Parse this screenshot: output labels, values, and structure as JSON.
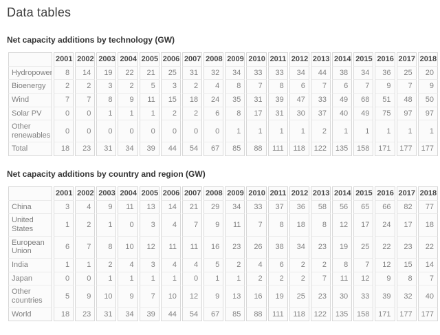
{
  "page": {
    "title": "Data tables"
  },
  "tables": [
    {
      "heading": "Net capacity additions by technology (GW)",
      "years": [
        "2001",
        "2002",
        "2003",
        "2004",
        "2005",
        "2006",
        "2007",
        "2008",
        "2009",
        "2010",
        "2011",
        "2012",
        "2013",
        "2014",
        "2015",
        "2016",
        "2017",
        "2018"
      ],
      "rows": [
        {
          "label": "Hydropower",
          "values": [
            8,
            14,
            19,
            22,
            21,
            25,
            31,
            32,
            34,
            33,
            33,
            34,
            44,
            38,
            34,
            36,
            25,
            20
          ]
        },
        {
          "label": "Bioenergy",
          "values": [
            2,
            2,
            3,
            2,
            5,
            3,
            2,
            4,
            8,
            7,
            8,
            6,
            7,
            6,
            7,
            9,
            7,
            9
          ]
        },
        {
          "label": "Wind",
          "values": [
            7,
            7,
            8,
            9,
            11,
            15,
            18,
            24,
            35,
            31,
            39,
            47,
            33,
            49,
            68,
            51,
            48,
            50
          ]
        },
        {
          "label": "Solar PV",
          "values": [
            0,
            0,
            1,
            1,
            1,
            2,
            2,
            6,
            8,
            17,
            31,
            30,
            37,
            40,
            49,
            75,
            97,
            97
          ]
        },
        {
          "label": "Other renewables",
          "values": [
            0,
            0,
            0,
            0,
            0,
            0,
            0,
            0,
            1,
            1,
            1,
            1,
            2,
            1,
            1,
            1,
            1,
            1
          ]
        },
        {
          "label": "Total",
          "values": [
            18,
            23,
            31,
            34,
            39,
            44,
            54,
            67,
            85,
            88,
            111,
            118,
            122,
            135,
            158,
            171,
            177,
            177
          ]
        }
      ]
    },
    {
      "heading": "Net capacity additions by country and region (GW)",
      "years": [
        "2001",
        "2002",
        "2003",
        "2004",
        "2005",
        "2006",
        "2007",
        "2008",
        "2009",
        "2010",
        "2011",
        "2012",
        "2013",
        "2014",
        "2015",
        "2016",
        "2017",
        "2018"
      ],
      "rows": [
        {
          "label": "China",
          "values": [
            3,
            4,
            9,
            11,
            13,
            14,
            21,
            29,
            34,
            33,
            37,
            36,
            58,
            56,
            65,
            66,
            82,
            77
          ]
        },
        {
          "label": "United States",
          "values": [
            1,
            2,
            1,
            0,
            3,
            4,
            7,
            9,
            11,
            7,
            8,
            18,
            8,
            12,
            17,
            24,
            17,
            18
          ]
        },
        {
          "label": "European Union",
          "values": [
            6,
            7,
            8,
            10,
            12,
            11,
            11,
            16,
            23,
            26,
            38,
            34,
            23,
            19,
            25,
            22,
            23,
            22
          ]
        },
        {
          "label": "India",
          "values": [
            1,
            1,
            2,
            4,
            3,
            4,
            4,
            5,
            2,
            4,
            6,
            2,
            2,
            8,
            7,
            12,
            15,
            14
          ]
        },
        {
          "label": "Japan",
          "values": [
            0,
            0,
            1,
            1,
            1,
            1,
            0,
            1,
            1,
            2,
            2,
            2,
            7,
            11,
            12,
            9,
            8,
            7
          ]
        },
        {
          "label": "Other countries",
          "values": [
            5,
            9,
            10,
            9,
            7,
            10,
            12,
            9,
            13,
            16,
            19,
            25,
            23,
            30,
            33,
            39,
            32,
            40
          ]
        },
        {
          "label": "World",
          "values": [
            18,
            23,
            31,
            34,
            39,
            44,
            54,
            67,
            85,
            88,
            111,
            118,
            122,
            135,
            158,
            171,
            177,
            177
          ]
        }
      ]
    }
  ]
}
